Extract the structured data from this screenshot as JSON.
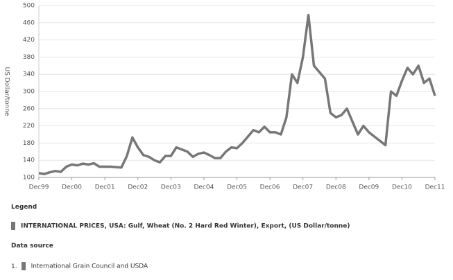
{
  "chart_data": {
    "type": "line",
    "y_label": "US Dollar/tonne",
    "x": [
      0,
      2,
      4,
      6,
      8,
      10,
      12,
      14,
      16,
      18,
      20,
      22,
      24,
      26,
      28,
      30,
      32,
      34,
      36,
      38,
      40,
      42,
      44,
      46,
      48,
      50,
      52,
      54,
      56,
      58,
      60,
      62,
      64,
      66,
      68,
      70,
      72,
      74,
      76,
      78,
      80,
      82,
      84,
      86,
      88,
      90,
      92,
      94,
      96,
      98,
      100,
      102,
      104,
      106,
      108,
      110,
      112,
      114,
      116,
      118,
      120,
      122,
      124,
      126,
      128,
      130,
      132,
      134,
      136,
      138,
      140,
      142,
      144
    ],
    "series": [
      {
        "name": "INTERNATIONAL PRICES, USA: Gulf, Wheat (No. 2 Hard Red Winter), Export, (US Dollar/tonne)",
        "color": "#777777",
        "values": [
          110,
          108,
          112,
          115,
          113,
          125,
          130,
          128,
          132,
          130,
          133,
          125,
          125,
          125,
          124,
          123,
          150,
          193,
          170,
          152,
          148,
          140,
          135,
          150,
          150,
          170,
          165,
          160,
          148,
          155,
          158,
          152,
          145,
          145,
          160,
          170,
          168,
          180,
          195,
          210,
          205,
          218,
          205,
          205,
          200,
          240,
          340,
          320,
          380,
          478,
          360,
          345,
          330,
          250,
          240,
          245,
          260,
          230,
          200,
          220,
          205,
          195,
          185,
          175,
          300,
          290,
          325,
          355,
          340,
          360,
          320,
          330,
          290
        ]
      }
    ],
    "xlim": [
      0,
      144
    ],
    "xticks": [
      {
        "value": 0,
        "label": "Dec99"
      },
      {
        "value": 12,
        "label": "Dec00"
      },
      {
        "value": 24,
        "label": "Dec01"
      },
      {
        "value": 36,
        "label": "Dec02"
      },
      {
        "value": 48,
        "label": "Dec03"
      },
      {
        "value": 60,
        "label": "Dec04"
      },
      {
        "value": 72,
        "label": "Dec05"
      },
      {
        "value": 84,
        "label": "Dec06"
      },
      {
        "value": 96,
        "label": "Dec07"
      },
      {
        "value": 108,
        "label": "Dec08"
      },
      {
        "value": 120,
        "label": "Dec09"
      },
      {
        "value": 132,
        "label": "Dec10"
      },
      {
        "value": 144,
        "label": "Dec11"
      }
    ],
    "ylim": [
      100,
      500
    ],
    "yticks": [
      100,
      140,
      180,
      220,
      260,
      300,
      340,
      380,
      420,
      460,
      500
    ],
    "grid": true
  },
  "legend_title": "Legend",
  "source_title": "Data source",
  "sources": [
    {
      "number": "1.",
      "name": "International Grain Council and USDA"
    }
  ]
}
